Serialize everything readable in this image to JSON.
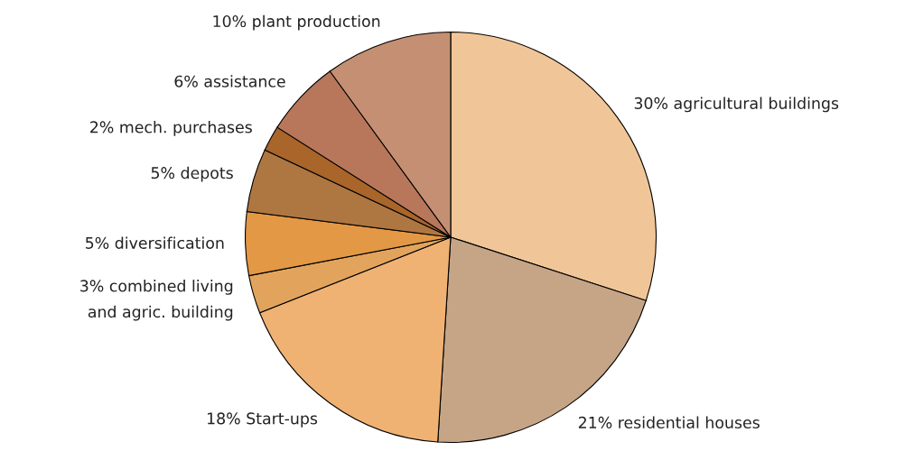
{
  "chart_data": {
    "type": "pie",
    "categories": [
      "30% agricultural buildings",
      "21% residential houses",
      "18% Start-ups",
      "3% combined living\nand agric. building",
      "5% diversification",
      "5% depots",
      "2% mech. purchases",
      "6% assistance",
      "10% plant production"
    ],
    "values": [
      30,
      21,
      18,
      3,
      5,
      5,
      2,
      6,
      10
    ],
    "colors": [
      "#f0c698",
      "#c6a587",
      "#efb273",
      "#e2a45c",
      "#e39845",
      "#ae7742",
      "#a9652a",
      "#b8775b",
      "#c48f72"
    ]
  }
}
